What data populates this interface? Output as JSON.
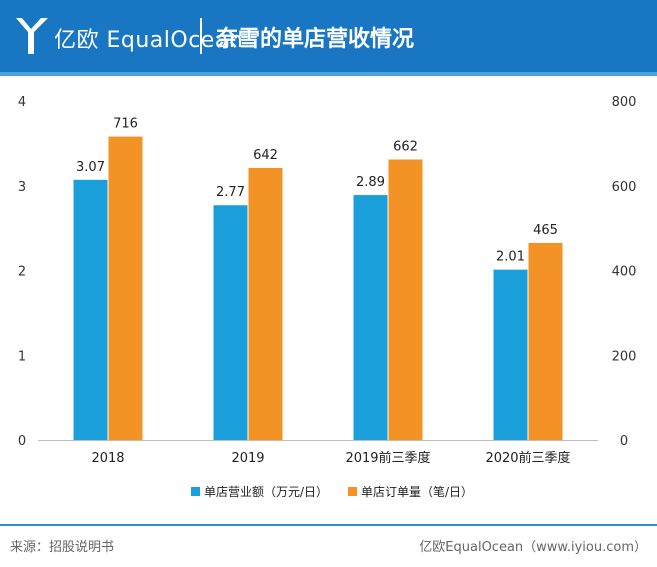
{
  "header": {
    "brand": "亿欧 EqualOcean",
    "title": "奈雪的单店营收情况"
  },
  "chart_data": {
    "type": "bar",
    "categories": [
      "2018",
      "2019",
      "2019前三季度",
      "2020前三季度"
    ],
    "series": [
      {
        "name": "单店营业额（万元/日）",
        "values": [
          3.07,
          2.77,
          2.89,
          2.01
        ],
        "axis": "left",
        "color": "#1a9fdb"
      },
      {
        "name": "单店订单量（笔/日）",
        "values": [
          716,
          642,
          662,
          465
        ],
        "axis": "right",
        "color": "#f39325"
      }
    ],
    "y_left": {
      "min": 0,
      "max": 4,
      "ticks": [
        "0",
        "1",
        "2",
        "3",
        "4"
      ]
    },
    "y_right": {
      "min": 0,
      "max": 800,
      "ticks": [
        "0",
        "200",
        "400",
        "600",
        "800"
      ]
    },
    "data_labels": [
      [
        "3.07",
        "2.77",
        "2.89",
        "2.01"
      ],
      [
        "716",
        "642",
        "662",
        "465"
      ]
    ],
    "legend_position": "bottom",
    "grid": false
  },
  "footer": {
    "source": "来源：招股说明书",
    "credit": "亿欧EqualOcean（www.iyiou.com）"
  }
}
